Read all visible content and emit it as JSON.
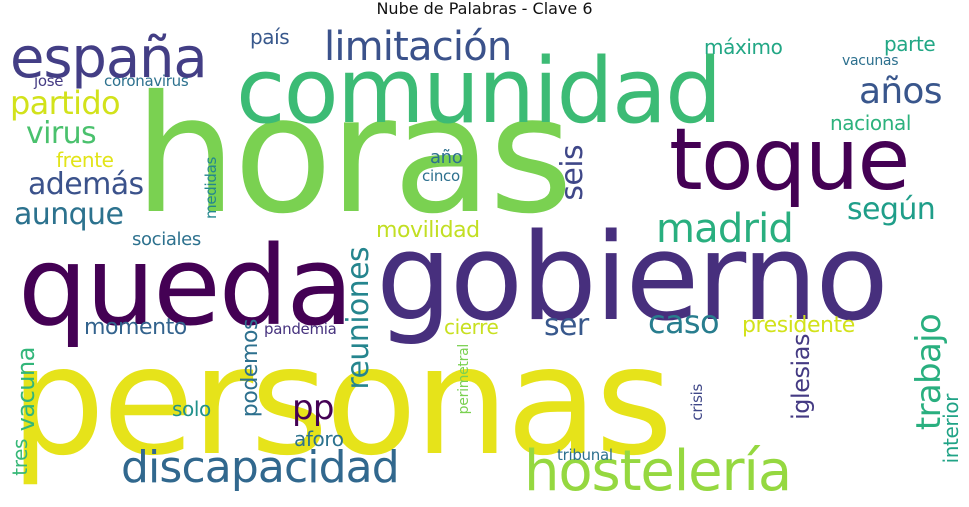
{
  "title": "Nube de Palabras - Clave 6",
  "words": [
    {
      "text": "personas",
      "color": "#e6e31a"
    },
    {
      "text": "horas",
      "color": "#7ad151"
    },
    {
      "text": "gobierno",
      "color": "#472f7d"
    },
    {
      "text": "queda",
      "color": "#440154"
    },
    {
      "text": "comunidad",
      "color": "#3cbb75"
    },
    {
      "text": "toque",
      "color": "#440154"
    },
    {
      "text": "españa",
      "color": "#433e85"
    },
    {
      "text": "hostelería",
      "color": "#95d840"
    },
    {
      "text": "discapacidad",
      "color": "#31688e"
    },
    {
      "text": "limitación",
      "color": "#3b528b"
    },
    {
      "text": "madrid",
      "color": "#29af7f"
    },
    {
      "text": "partido",
      "color": "#d2e21b"
    },
    {
      "text": "además",
      "color": "#3b528b"
    },
    {
      "text": "aunque",
      "color": "#2c728e"
    },
    {
      "text": "virus",
      "color": "#4ac16d"
    },
    {
      "text": "años",
      "color": "#39568c"
    },
    {
      "text": "según",
      "color": "#1f9e89"
    },
    {
      "text": "caso",
      "color": "#287d8e"
    },
    {
      "text": "ser",
      "color": "#38588c"
    },
    {
      "text": "trabajo",
      "color": "#29af7f"
    },
    {
      "text": "reuniones",
      "color": "#25858e"
    },
    {
      "text": "seis",
      "color": "#3f4788"
    },
    {
      "text": "pp",
      "color": "#440154"
    },
    {
      "text": "iglesias",
      "color": "#443a83"
    },
    {
      "text": "interior",
      "color": "#20a386"
    },
    {
      "text": "momento",
      "color": "#33638d"
    },
    {
      "text": "presidente",
      "color": "#d2e21b"
    },
    {
      "text": "podemos",
      "color": "#2d708e"
    },
    {
      "text": "movilidad",
      "color": "#c2df23"
    },
    {
      "text": "cierre",
      "color": "#c8e020"
    },
    {
      "text": "vacuna",
      "color": "#32b67a"
    },
    {
      "text": "aforo",
      "color": "#2c728e"
    },
    {
      "text": "solo",
      "color": "#21918c"
    },
    {
      "text": "sociales",
      "color": "#2d718e"
    },
    {
      "text": "frente",
      "color": "#e2e418"
    },
    {
      "text": "país",
      "color": "#38588c"
    },
    {
      "text": "máximo",
      "color": "#22a785"
    },
    {
      "text": "parte",
      "color": "#22a785"
    },
    {
      "text": "nacional",
      "color": "#2db27d"
    },
    {
      "text": "tres",
      "color": "#37b878"
    },
    {
      "text": "medidas",
      "color": "#24878e"
    },
    {
      "text": "año",
      "color": "#2d708e"
    },
    {
      "text": "cinco",
      "color": "#2d708e"
    },
    {
      "text": "josé",
      "color": "#443a83"
    },
    {
      "text": "coronavirus",
      "color": "#2d718e"
    },
    {
      "text": "vacunas",
      "color": "#2d708e"
    },
    {
      "text": "pandemia",
      "color": "#46327e"
    },
    {
      "text": "perimetral",
      "color": "#7ad151"
    },
    {
      "text": "crisis",
      "color": "#3f4788"
    },
    {
      "text": "tribunal",
      "color": "#2d708e"
    }
  ]
}
